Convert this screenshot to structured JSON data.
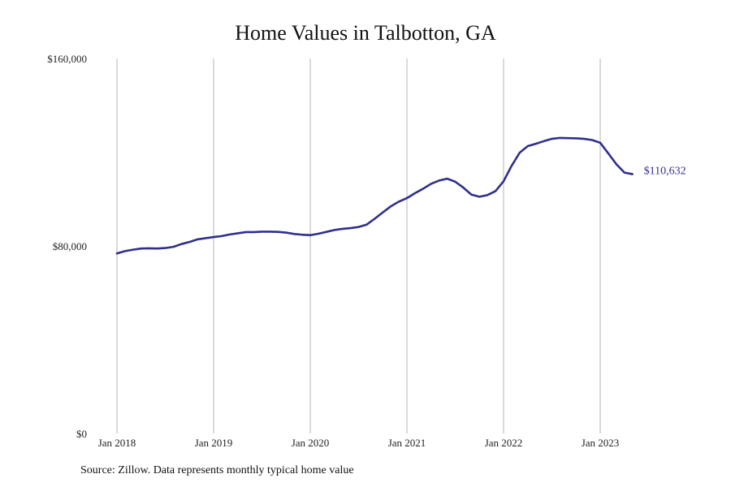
{
  "chart_data": {
    "type": "line",
    "title": "Home Values in Talbotton, GA",
    "xlabel": "",
    "ylabel": "",
    "source": "Source: Zillow. Data represents monthly typical home value",
    "ylim": [
      0,
      160000
    ],
    "y_ticks": [
      {
        "value": 0,
        "label": "$0"
      },
      {
        "value": 80000,
        "label": "$80,000"
      },
      {
        "value": 160000,
        "label": "$160,000"
      }
    ],
    "x_range": [
      "2018-01",
      "2023-05"
    ],
    "x_ticks": [
      {
        "date": "2018-01",
        "label": "Jan 2018"
      },
      {
        "date": "2019-01",
        "label": "Jan 2019"
      },
      {
        "date": "2020-01",
        "label": "Jan 2020"
      },
      {
        "date": "2021-01",
        "label": "Jan 2021"
      },
      {
        "date": "2022-01",
        "label": "Jan 2022"
      },
      {
        "date": "2023-01",
        "label": "Jan 2023"
      }
    ],
    "grid": {
      "vertical": true,
      "horizontal": false
    },
    "colors": {
      "line": "#2f2f8c",
      "grid": "#b5b5b5"
    },
    "end_label": "$110,632",
    "series": [
      {
        "x": [
          "2018-01",
          "2018-02",
          "2018-03",
          "2018-04",
          "2018-05",
          "2018-06",
          "2018-07",
          "2018-08",
          "2018-09",
          "2018-10",
          "2018-11",
          "2018-12",
          "2019-01",
          "2019-02",
          "2019-03",
          "2019-04",
          "2019-05",
          "2019-06",
          "2019-07",
          "2019-08",
          "2019-09",
          "2019-10",
          "2019-11",
          "2019-12",
          "2020-01",
          "2020-02",
          "2020-03",
          "2020-04",
          "2020-05",
          "2020-06",
          "2020-07",
          "2020-08",
          "2020-09",
          "2020-10",
          "2020-11",
          "2020-12",
          "2021-01",
          "2021-02",
          "2021-03",
          "2021-04",
          "2021-05",
          "2021-06",
          "2021-07",
          "2021-08",
          "2021-09",
          "2021-10",
          "2021-11",
          "2021-12",
          "2022-01",
          "2022-02",
          "2022-03",
          "2022-04",
          "2022-05",
          "2022-06",
          "2022-07",
          "2022-08",
          "2022-09",
          "2022-10",
          "2022-11",
          "2022-12",
          "2023-01",
          "2023-02",
          "2023-03",
          "2023-04",
          "2023-05"
        ],
        "values": [
          76800,
          77800,
          78400,
          78900,
          79000,
          78900,
          79100,
          79600,
          80800,
          81700,
          82800,
          83300,
          83800,
          84200,
          84900,
          85400,
          85900,
          85900,
          86100,
          86100,
          86000,
          85700,
          85100,
          84800,
          84600,
          85200,
          86000,
          86800,
          87300,
          87600,
          88100,
          89100,
          91600,
          94300,
          96900,
          98900,
          100400,
          102500,
          104400,
          106500,
          107900,
          108700,
          107400,
          104900,
          101900,
          101000,
          101700,
          103400,
          107600,
          114200,
          119800,
          122600,
          123600,
          124700,
          125700,
          126100,
          126000,
          125900,
          125700,
          125200,
          124000,
          119500,
          114900,
          111300,
          110632
        ]
      }
    ]
  }
}
